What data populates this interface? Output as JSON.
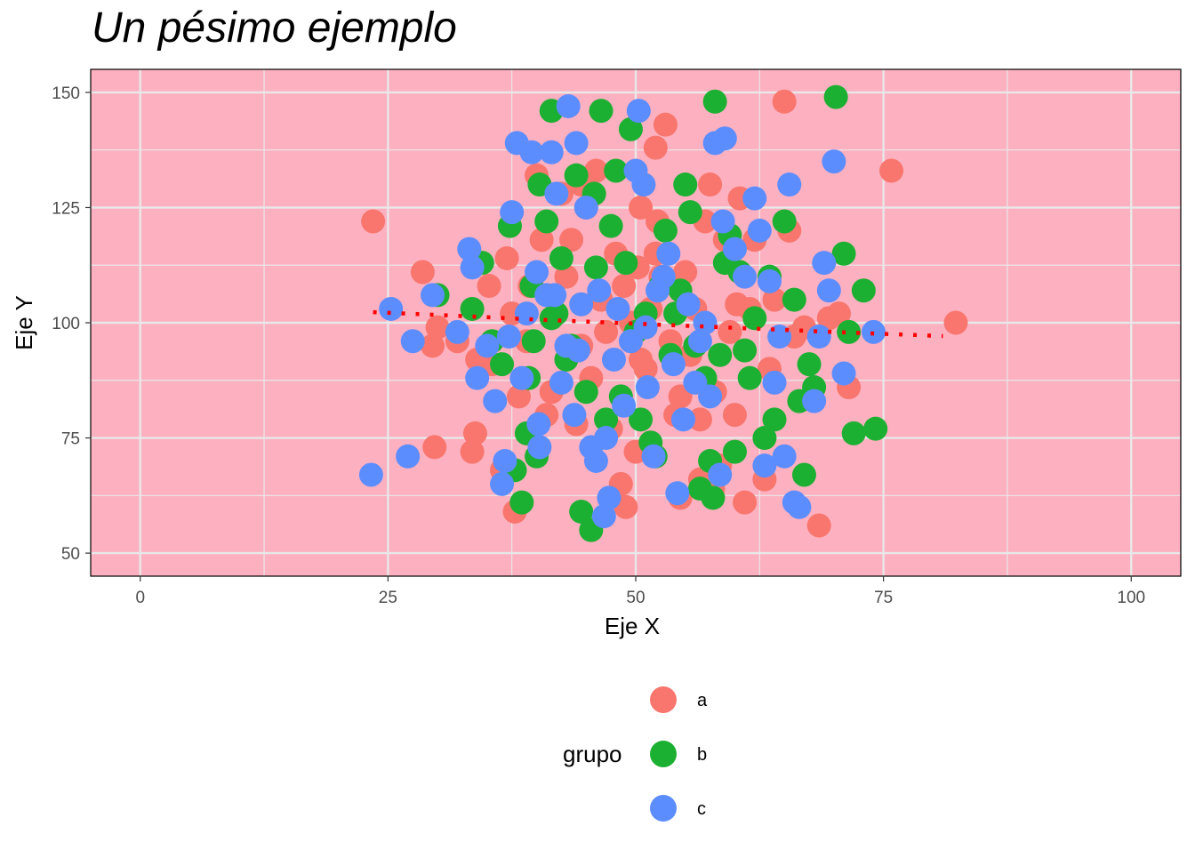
{
  "chart_data": {
    "type": "scatter",
    "title": "Un pésimo ejemplo",
    "xlabel": "Eje X",
    "ylabel": "Eje Y",
    "xlim": [
      -5,
      105
    ],
    "ylim": [
      45,
      155
    ],
    "xticks": [
      0,
      25,
      50,
      75,
      100
    ],
    "yticks": [
      50,
      75,
      100,
      125,
      150
    ],
    "grid": true,
    "panel_background": "#FDB0C0",
    "grid_color": "#E8E8E8",
    "legend": {
      "title": "grupo",
      "position": "bottom",
      "entries": [
        {
          "label": "a",
          "color": "#F8766D"
        },
        {
          "label": "b",
          "color": "#1CB032"
        },
        {
          "label": "c",
          "color": "#5C8DFF"
        }
      ]
    },
    "trend_line": {
      "style": "dotted",
      "color": "#FF0000",
      "x": [
        23.5,
        30,
        40,
        50,
        60,
        70,
        81
      ],
      "y": [
        102.3,
        101.7,
        100.7,
        99.8,
        98.9,
        98.0,
        97.1
      ]
    },
    "series": [
      {
        "name": "a",
        "color": "#F8766D",
        "x": [
          23.5,
          28.5,
          29.5,
          29.7,
          30,
          32,
          33.5,
          33.8,
          34,
          35.2,
          35.5,
          36.5,
          37,
          37.8,
          38.2,
          39,
          39.3,
          40,
          40.5,
          41,
          41.5,
          42.5,
          43,
          43.5,
          44,
          44.5,
          45,
          45.5,
          46,
          46.5,
          47,
          47.5,
          48,
          48.5,
          49,
          49.5,
          50,
          50.2,
          50.5,
          51,
          51.5,
          52,
          52.2,
          52.5,
          53,
          53.5,
          54,
          54.5,
          55,
          55.5,
          56,
          56.5,
          57,
          57.5,
          58,
          58.5,
          59,
          59.5,
          60,
          60.5,
          61,
          61.5,
          62,
          63,
          63.5,
          64,
          65,
          65.5,
          66,
          67,
          68.5,
          69.5,
          70.5,
          71.5,
          75.8,
          82.3,
          37.5,
          44.5,
          48.8,
          50.5,
          52,
          54.5,
          56.5,
          57.8,
          60.2
        ],
        "y": [
          122,
          111,
          95,
          73,
          99,
          96,
          72,
          76,
          92,
          108,
          91,
          68,
          114,
          59,
          84,
          96,
          108,
          132,
          118,
          80,
          85,
          128,
          110,
          118,
          78,
          95,
          125,
          88,
          133,
          105,
          98,
          77,
          115,
          65,
          60,
          100,
          72,
          112,
          125,
          90,
          103,
          138,
          122,
          110,
          143,
          96,
          80,
          62,
          111,
          93,
          103,
          66,
          122,
          130,
          85,
          69,
          118,
          98,
          80,
          127,
          61,
          103,
          118,
          66,
          90,
          105,
          148,
          120,
          97,
          99,
          56,
          101,
          102,
          86,
          133,
          100,
          102,
          130,
          108,
          92,
          115,
          84,
          79,
          64,
          104
        ]
      },
      {
        "name": "b",
        "color": "#1CB032",
        "x": [
          30,
          33.5,
          34.5,
          35.5,
          36.5,
          37.3,
          37.8,
          38.5,
          39,
          39.2,
          39.5,
          39.7,
          40,
          40.3,
          41,
          41.5,
          42,
          42.5,
          43,
          43.5,
          44,
          44.5,
          45,
          45.5,
          45.8,
          46,
          46.5,
          47,
          47.5,
          48,
          48.5,
          49,
          49.5,
          50,
          50.5,
          51,
          51.5,
          52,
          52.5,
          53,
          53.5,
          54,
          54.5,
          55,
          55.5,
          56,
          56.5,
          57,
          57.5,
          58,
          58.5,
          59,
          59.5,
          60,
          60.5,
          61,
          61.5,
          62,
          63,
          63.5,
          64,
          65,
          66,
          66.5,
          67,
          67.5,
          68,
          71,
          71.5,
          72,
          73,
          74.2,
          70.2,
          57.8,
          41.5
        ],
        "y": [
          106,
          103,
          113,
          96,
          91,
          121,
          68,
          61,
          76,
          88,
          108,
          96,
          71,
          130,
          122,
          146,
          102,
          114,
          92,
          95,
          132,
          59,
          85,
          55,
          128,
          112,
          146,
          79,
          121,
          133,
          84,
          113,
          142,
          98,
          79,
          102,
          74,
          71,
          108,
          120,
          93,
          102,
          107,
          130,
          124,
          95,
          64,
          88,
          70,
          148,
          93,
          113,
          119,
          72,
          111,
          94,
          88,
          101,
          75,
          110,
          79,
          122,
          105,
          83,
          67,
          91,
          86,
          115,
          98,
          76,
          107,
          77,
          149,
          62,
          101
        ]
      },
      {
        "name": "c",
        "color": "#5C8DFF",
        "x": [
          23.3,
          25.3,
          27,
          27.5,
          29.5,
          32,
          33.2,
          33.5,
          34,
          35,
          35.8,
          36.5,
          36.8,
          37.2,
          37.5,
          38,
          38.5,
          39,
          39.5,
          40,
          40.3,
          41,
          41.5,
          42,
          42.5,
          43,
          43.2,
          43.8,
          44,
          44.5,
          45,
          45.5,
          46,
          46.3,
          46.8,
          47.3,
          47.8,
          48.2,
          48.8,
          49.5,
          50,
          50.3,
          50.8,
          51.2,
          51.8,
          52.2,
          52.8,
          53.3,
          53.8,
          54.2,
          54.8,
          55.3,
          56,
          56.5,
          57,
          57.5,
          58,
          58.5,
          59,
          60,
          61,
          62,
          62.5,
          63,
          63.5,
          64,
          64.5,
          65,
          65.5,
          66,
          66.5,
          68,
          68.5,
          69,
          69.5,
          70,
          71,
          74,
          40.2,
          41.8,
          44.2,
          47,
          51,
          58.8
        ],
        "y": [
          67,
          103,
          71,
          96,
          106,
          98,
          116,
          112,
          88,
          95,
          83,
          65,
          70,
          97,
          124,
          139,
          88,
          102,
          137,
          111,
          73,
          106,
          137,
          128,
          87,
          95,
          147,
          80,
          139,
          104,
          125,
          73,
          70,
          107,
          58,
          62,
          92,
          103,
          82,
          96,
          133,
          146,
          130,
          86,
          71,
          107,
          110,
          115,
          91,
          63,
          79,
          104,
          87,
          96,
          100,
          84,
          139,
          67,
          140,
          116,
          110,
          127,
          120,
          69,
          109,
          87,
          97,
          71,
          130,
          61,
          60,
          83,
          97,
          113,
          107,
          135,
          89,
          98,
          78,
          106,
          94,
          75,
          99,
          122
        ]
      }
    ]
  }
}
